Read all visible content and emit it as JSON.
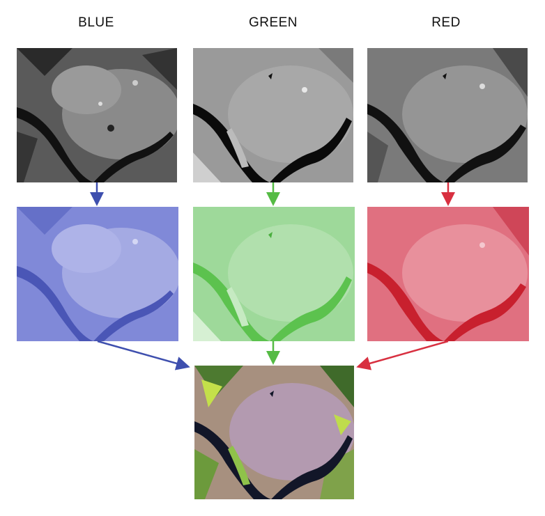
{
  "bands": [
    {
      "label": "BLUE",
      "color": "#3e4fae",
      "tint": "#7f88d6"
    },
    {
      "label": "GREEN",
      "color": "#55bb44",
      "tint": "#8fd489"
    },
    {
      "label": "RED",
      "color": "#d83040",
      "tint": "#e06a78"
    }
  ],
  "composite": {
    "water": "#111628",
    "vegetation": "#5d8a3a",
    "urban": "#b79cae"
  }
}
